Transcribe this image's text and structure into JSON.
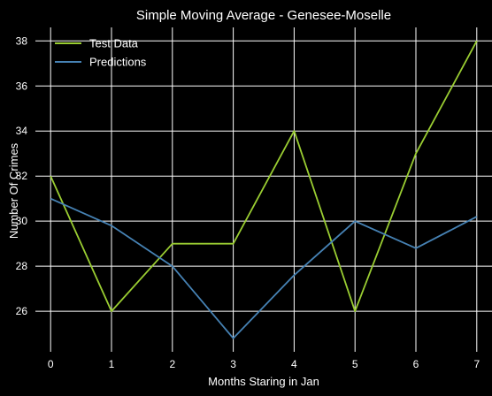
{
  "chart_data": {
    "type": "line",
    "title": "Simple Moving Average - Genesee-Moselle",
    "xlabel": "Months Staring in Jan",
    "ylabel": "Number Of Crimes",
    "x": [
      0,
      1,
      2,
      3,
      4,
      5,
      6,
      7
    ],
    "xticks": [
      "0",
      "1",
      "2",
      "3",
      "4",
      "5",
      "6",
      "7"
    ],
    "yticks": [
      "26",
      "28",
      "30",
      "32",
      "34",
      "36",
      "38"
    ],
    "ylim": [
      24.2,
      38.6
    ],
    "xlim": [
      -0.25,
      7.25
    ],
    "grid": true,
    "legend_position": "top-left",
    "series": [
      {
        "name": "Test Data",
        "color": "#9acd32",
        "values": [
          32,
          26,
          29,
          29,
          34,
          26,
          33,
          38
        ]
      },
      {
        "name": "Predictions",
        "color": "#4682b4",
        "values": [
          31,
          29.8,
          28,
          24.8,
          27.6,
          30,
          28.8,
          30.2
        ]
      }
    ]
  }
}
